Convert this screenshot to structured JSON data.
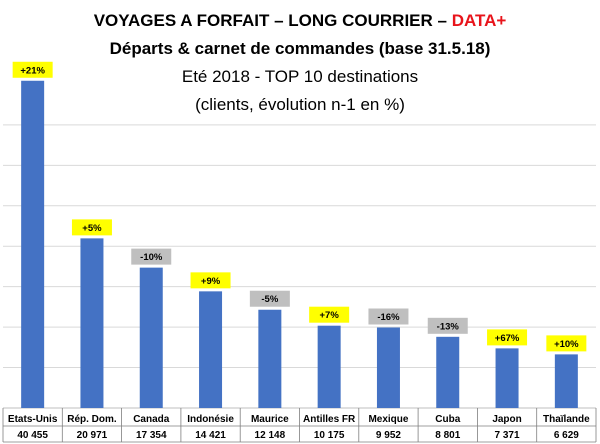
{
  "header": {
    "title_main": "VOYAGES A FORFAIT – LONG COURRIER – ",
    "title_accent": "DATA+",
    "title_line2": "Départs & carnet de commandes (base 31.5.18)",
    "title_line3": "Eté 2018 - TOP 10 destinations",
    "title_line4": "(clients, évolution n-1 en %)"
  },
  "colors": {
    "bar": "#4472c4",
    "positive_badge": "#ffff00",
    "negative_badge": "#bfbfbf",
    "accent_text": "#e8141b",
    "grid": "#d9d9d9"
  },
  "chart_data": {
    "type": "bar",
    "categories": [
      "Etats-Unis",
      "Rép. Dom.",
      "Canada",
      "Indonésie",
      "Maurice",
      "Antilles FR",
      "Mexique",
      "Cuba",
      "Japon",
      "Thaïlande"
    ],
    "values": [
      40455,
      20971,
      17354,
      14421,
      12148,
      10175,
      9952,
      8801,
      7371,
      6629
    ],
    "value_labels": [
      "40 455",
      "20 971",
      "17 354",
      "14 421",
      "12 148",
      "10 175",
      "9 952",
      "8 801",
      "7 371",
      "6 629"
    ],
    "evolution": [
      "+21%",
      "+5%",
      "-10%",
      "+9%",
      "-5%",
      "+7%",
      "-16%",
      "-13%",
      "+67%",
      "+10%"
    ],
    "evolution_sign": [
      "pos",
      "pos",
      "neg",
      "pos",
      "neg",
      "pos",
      "neg",
      "neg",
      "pos",
      "pos"
    ],
    "ylim": [
      0,
      45000
    ],
    "grid": true,
    "grid_step": 5000
  }
}
